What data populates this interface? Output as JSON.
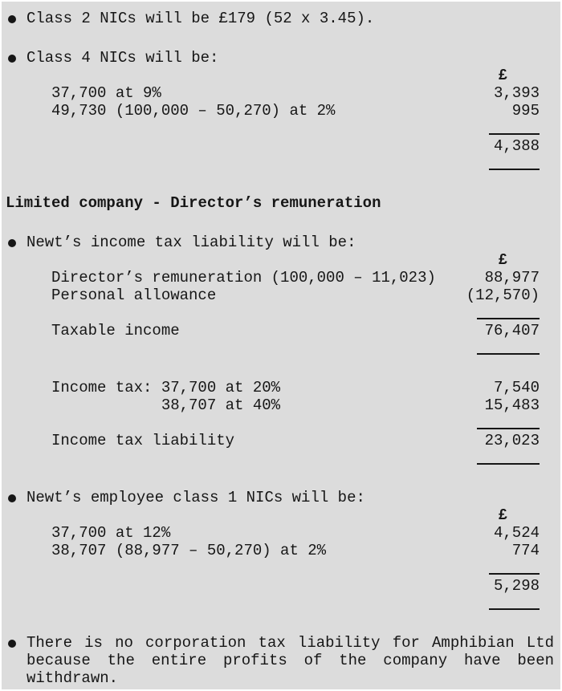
{
  "colors": {
    "sheet_bg": "#dcdcdc",
    "frame_bg": "#ffffff",
    "text": "#161616",
    "rule": "#161616"
  },
  "content": {
    "class2_bullet": "Class 2 NICs will be £179 (52 x 3.45).",
    "class4": {
      "intro": "Class 4 NICs will be:",
      "currency_header": "£",
      "rows": [
        {
          "label": "37,700 at 9%",
          "amount": "3,393"
        },
        {
          "label": "49,730 (100,000 – 50,270) at 2%",
          "amount": "995"
        }
      ],
      "total": "4,388"
    },
    "heading": "Limited company - Director’s remuneration",
    "income_tax": {
      "intro": "Newt’s income tax liability will be:",
      "currency_header": "£",
      "rows": [
        {
          "label": "Director’s remuneration (100,000 – 11,023)",
          "amount": "88,977"
        },
        {
          "label": "Personal allowance",
          "amount": "(12,570)"
        }
      ],
      "taxable_income": {
        "label": "Taxable income",
        "amount": "76,407"
      },
      "tax_rows": [
        {
          "label": "Income tax: 37,700 at 20%",
          "amount": "7,540"
        },
        {
          "label": "            38,707 at 40%",
          "amount": "15,483"
        }
      ],
      "liability": {
        "label": "Income tax liability",
        "amount": "23,023"
      }
    },
    "class1": {
      "intro": "Newt’s employee class 1 NICs will be:",
      "currency_header": "£",
      "rows": [
        {
          "label": "37,700 at 12%",
          "amount": "4,524"
        },
        {
          "label": "38,707 (88,977 – 50,270) at 2%",
          "amount": "774"
        }
      ],
      "total": "5,298"
    },
    "corporation_tax_bullet": "There is no corporation tax liability for Amphibian Ltd because the entire profits of the company have been withdrawn."
  }
}
